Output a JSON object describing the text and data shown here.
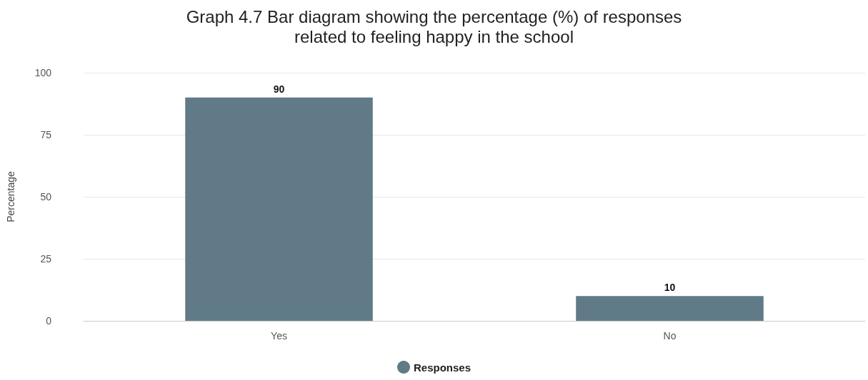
{
  "chart_data": {
    "type": "bar",
    "title": "Graph 4.7 Bar diagram showing the percentage (%) of responses\nrelated to feeling happy in the school",
    "ylabel": "Percentage",
    "categories": [
      "Yes",
      "No"
    ],
    "series": [
      {
        "name": "Responses",
        "color": "#607b87",
        "values": [
          90,
          10
        ]
      }
    ],
    "ylim": [
      0,
      100
    ],
    "yticks": [
      0,
      25,
      50,
      75,
      100
    ],
    "grid": "y",
    "legend": "bottom",
    "data_labels": true
  }
}
